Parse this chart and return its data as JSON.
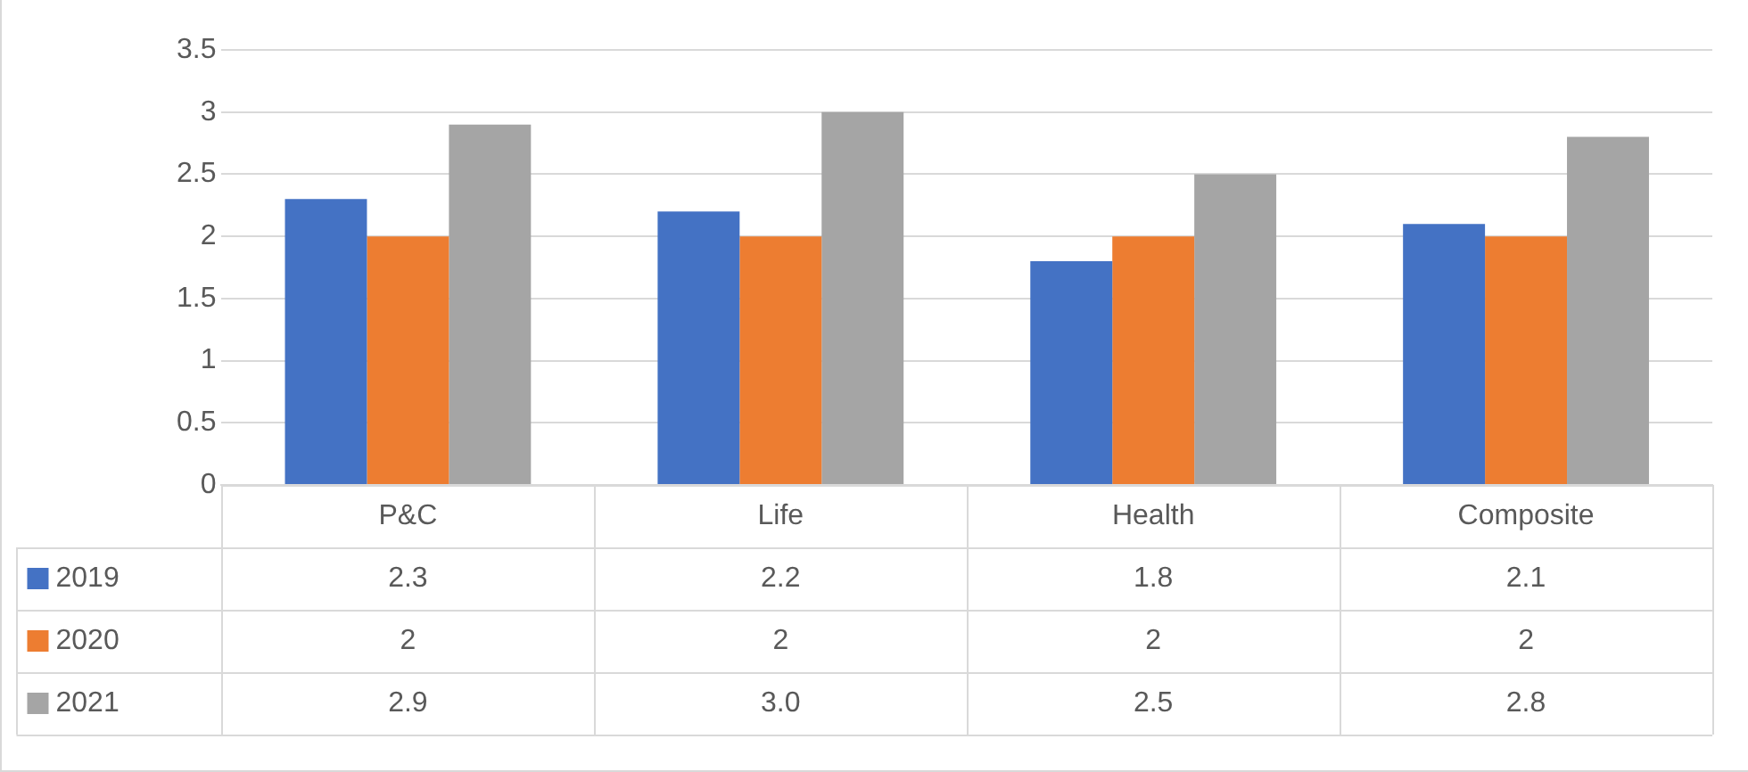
{
  "chart_data": {
    "type": "bar",
    "categories": [
      "P&C",
      "Life",
      "Health",
      "Composite"
    ],
    "series": [
      {
        "name": "2019",
        "color": "#4472c4",
        "values": [
          2.3,
          2.2,
          1.8,
          2.1
        ],
        "value_labels": [
          "2.3",
          "2.2",
          "1.8",
          "2.1"
        ]
      },
      {
        "name": "2020",
        "color": "#ed7d31",
        "values": [
          2,
          2,
          2,
          2
        ],
        "value_labels": [
          "2",
          "2",
          "2",
          "2"
        ]
      },
      {
        "name": "2021",
        "color": "#a5a5a5",
        "values": [
          2.9,
          3.0,
          2.5,
          2.8
        ],
        "value_labels": [
          "2.9",
          "3.0",
          "2.5",
          "2.8"
        ]
      }
    ],
    "ylim": [
      0,
      3.5
    ],
    "yticks": [
      0,
      0.5,
      1,
      1.5,
      2,
      2.5,
      3,
      3.5
    ],
    "grid": "y",
    "legend": "bottom left"
  }
}
